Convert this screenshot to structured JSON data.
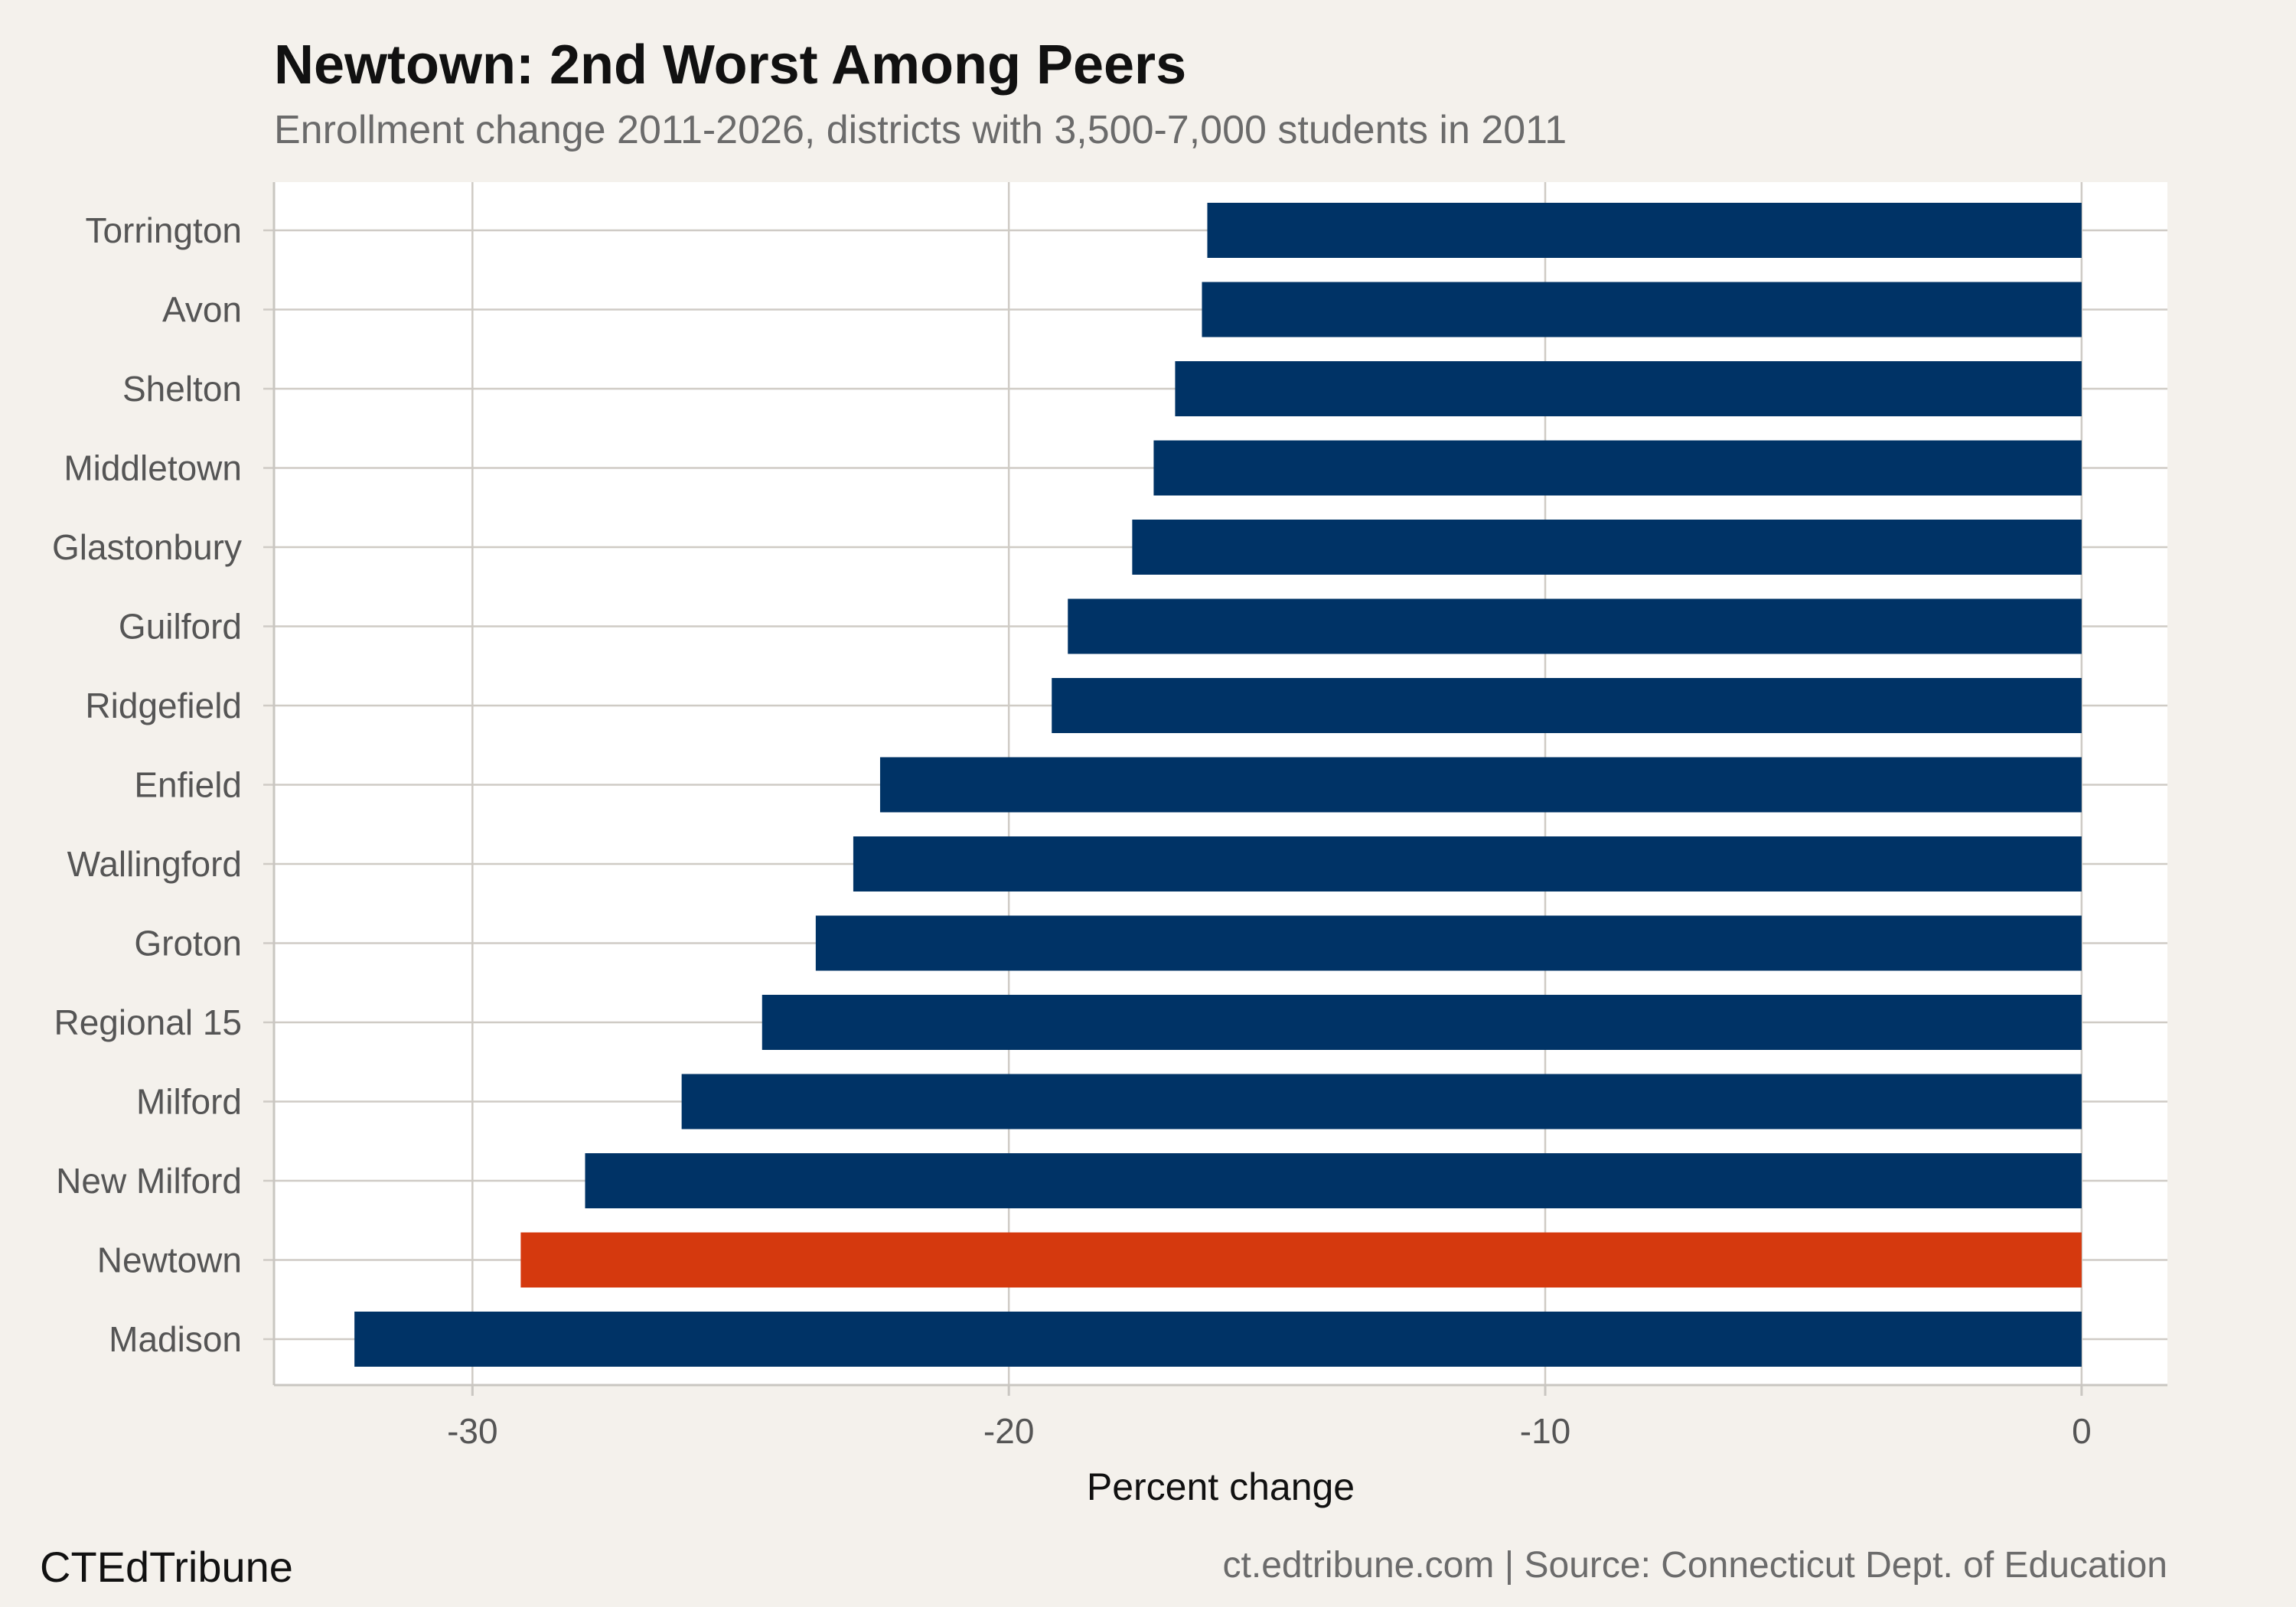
{
  "chart_data": {
    "type": "bar",
    "orientation": "horizontal",
    "title": "Newtown: 2nd Worst Among Peers",
    "subtitle": "Enrollment change 2011-2026, districts with 3,500-7,000 students in 2011",
    "xlabel": "Percent change",
    "ylabel": "",
    "xlim": [
      -33.7,
      1.6
    ],
    "xticks": [
      -30,
      -20,
      -10,
      0
    ],
    "xtick_labels": [
      "-30",
      "-20",
      "-10",
      "0"
    ],
    "grid": true,
    "categories": [
      "Torrington",
      "Avon",
      "Shelton",
      "Middletown",
      "Glastonbury",
      "Guilford",
      "Ridgefield",
      "Enfield",
      "Wallingford",
      "Groton",
      "Regional 15",
      "Milford",
      "New Milford",
      "Newtown",
      "Madison"
    ],
    "values": [
      -16.3,
      -16.4,
      -16.9,
      -17.3,
      -17.7,
      -18.9,
      -19.2,
      -22.4,
      -22.9,
      -23.6,
      -24.6,
      -26.1,
      -27.9,
      -29.1,
      -32.2
    ],
    "highlight": "Newtown",
    "colors": {
      "default": "#003366",
      "highlight": "#d5390e"
    }
  },
  "footer": {
    "brand": "CTEdTribune",
    "source": "ct.edtribune.com | Source: Connecticut Dept. of Education"
  }
}
